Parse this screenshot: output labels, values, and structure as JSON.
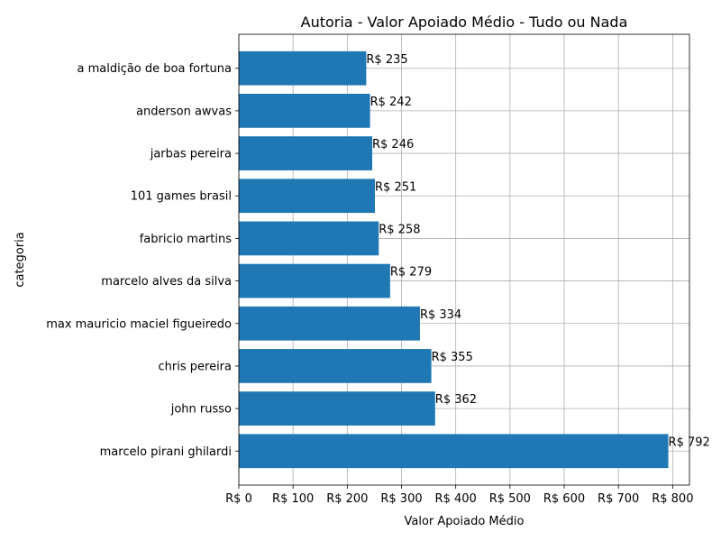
{
  "chart_data": {
    "type": "bar",
    "orientation": "horizontal",
    "title": "Autoria - Valor Apoiado Médio - Tudo ou Nada",
    "xlabel": "Valor Apoiado Médio",
    "ylabel": "categoria",
    "categories": [
      "marcelo pirani ghilardi",
      "john russo",
      "chris pereira",
      "max mauricio maciel figueiredo",
      "marcelo alves da silva",
      "fabricio martins",
      "101 games brasil",
      "jarbas pereira",
      "anderson awvas",
      "a maldição de boa fortuna"
    ],
    "values": [
      792,
      362,
      355,
      334,
      279,
      258,
      251,
      246,
      242,
      235
    ],
    "data_labels": [
      "R$ 792",
      "R$ 362",
      "R$ 355",
      "R$ 334",
      "R$ 279",
      "R$ 258",
      "R$ 251",
      "R$ 246",
      "R$ 242",
      "R$ 235"
    ],
    "xticks": [
      0,
      100,
      200,
      300,
      400,
      500,
      600,
      700,
      800
    ],
    "xtick_labels": [
      "R$ 0",
      "R$ 100",
      "R$ 200",
      "R$ 300",
      "R$ 400",
      "R$ 500",
      "R$ 600",
      "R$ 700",
      "R$ 800"
    ],
    "xlim": [
      0,
      831
    ],
    "grid": true,
    "bar_color": "#1f77b4"
  }
}
